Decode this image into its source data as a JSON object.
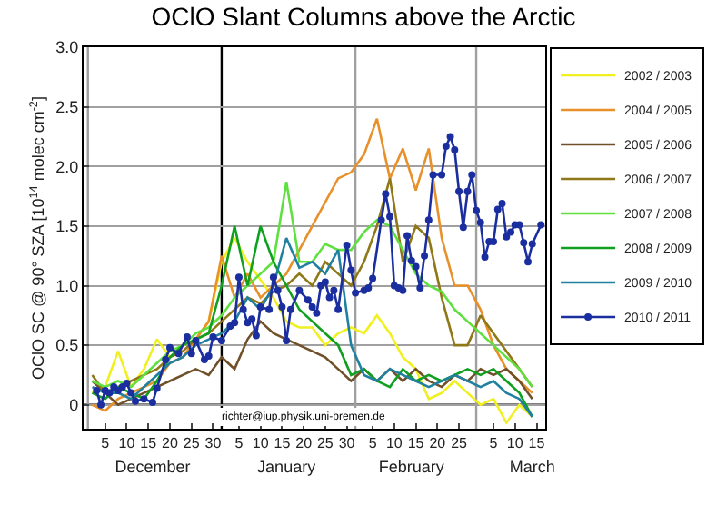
{
  "chart_data": {
    "type": "line",
    "title": "OClO Slant Columns above the Arctic",
    "ylabel": "OClO SC @ 90° SZA [10$^{14}$ molec cm$^{-2}$]",
    "x": [
      "2010-12-02",
      "2010-12-05",
      "2010-12-08",
      "2010-12-11",
      "2010-12-14",
      "2010-12-17",
      "2010-12-20",
      "2010-12-23",
      "2010-12-26",
      "2010-12-29",
      "2011-01-01",
      "2011-01-04",
      "2011-01-07",
      "2011-01-10",
      "2011-01-13",
      "2011-01-16",
      "2011-01-19",
      "2011-01-22",
      "2011-01-25",
      "2011-01-28",
      "2011-01-31",
      "2011-02-03",
      "2011-02-06",
      "2011-02-09",
      "2011-02-12",
      "2011-02-15",
      "2011-02-18",
      "2011-02-21",
      "2011-02-24",
      "2011-02-27",
      "2011-03-02",
      "2011-03-05",
      "2011-03-08",
      "2011-03-11",
      "2011-03-14"
    ],
    "xlim": [
      "2010-11-30",
      "2011-03-17"
    ],
    "ylim": [
      -0.2,
      3.0
    ],
    "xticks": [
      {
        "value": "2010-12-05",
        "label": "5"
      },
      {
        "value": "2010-12-10",
        "label": "10"
      },
      {
        "value": "2010-12-15",
        "label": "15"
      },
      {
        "value": "2010-12-20",
        "label": "20"
      },
      {
        "value": "2010-12-25",
        "label": "25"
      },
      {
        "value": "2010-12-30",
        "label": "30"
      },
      {
        "value": "2011-01-05",
        "label": "5"
      },
      {
        "value": "2011-01-10",
        "label": "10"
      },
      {
        "value": "2011-01-15",
        "label": "15"
      },
      {
        "value": "2011-01-20",
        "label": "20"
      },
      {
        "value": "2011-01-25",
        "label": "25"
      },
      {
        "value": "2011-01-30",
        "label": "30"
      },
      {
        "value": "2011-02-05",
        "label": "5"
      },
      {
        "value": "2011-02-10",
        "label": "10"
      },
      {
        "value": "2011-02-15",
        "label": "15"
      },
      {
        "value": "2011-02-20",
        "label": "20"
      },
      {
        "value": "2011-02-25",
        "label": "25"
      },
      {
        "value": "2011-03-05",
        "label": "5"
      },
      {
        "value": "2011-03-10",
        "label": "10"
      },
      {
        "value": "2011-03-15",
        "label": "15"
      }
    ],
    "x2lim": [
      "2010-11-30",
      "2011-03-17"
    ],
    "x2ticks": [
      {
        "value": "2010-12-16",
        "label": "December"
      },
      {
        "value": "2011-01-16",
        "label": "January"
      },
      {
        "value": "2011-02-14",
        "label": "February"
      },
      {
        "value": "2011-03-14",
        "label": "March"
      }
    ],
    "yticks": [
      {
        "value": 0,
        "label": "0"
      },
      {
        "value": 0.5,
        "label": "0.5"
      },
      {
        "value": 1.0,
        "label": "1.0"
      },
      {
        "value": 1.5,
        "label": "1.5"
      },
      {
        "value": 2.0,
        "label": "2.0"
      },
      {
        "value": 2.5,
        "label": "2.5"
      },
      {
        "value": 3.0,
        "label": "3.0"
      }
    ],
    "grid": "y",
    "legend": "right",
    "marker": "none",
    "line_style": "solid",
    "ref_lines": [
      {
        "axis": "y",
        "value": 0,
        "color": "#000000"
      },
      {
        "axis": "x",
        "value": "2010-12-01",
        "color": "#a0a0a0"
      },
      {
        "axis": "x",
        "value": "2011-01-01",
        "color": "#000000"
      },
      {
        "axis": "x",
        "value": "2011-02-01",
        "color": "#a0a0a0"
      },
      {
        "axis": "x",
        "value": "2011-03-01",
        "color": "#a0a0a0"
      }
    ],
    "annotations": [
      "richter@iup.physik.uni-bremen.de"
    ],
    "series": [
      {
        "name": "2002 / 2003",
        "color": "#f0f020",
        "values": [
          0.1,
          0.15,
          0.45,
          0.15,
          0.3,
          0.55,
          0.4,
          0.5,
          0.55,
          0.7,
          1.2,
          1.4,
          1.2,
          1.05,
          0.9,
          0.7,
          0.65,
          0.65,
          0.5,
          0.6,
          0.65,
          0.6,
          0.75,
          0.6,
          0.4,
          0.3,
          0.05,
          0.1,
          0.2,
          0.1,
          0.0,
          0.05,
          -0.15,
          0.0,
          -0.1
        ]
      },
      {
        "name": "2004 / 2005",
        "color": "#e8902a",
        "values": [
          0.0,
          -0.05,
          0.05,
          0.1,
          0.15,
          0.2,
          0.35,
          0.4,
          0.55,
          0.7,
          1.25,
          0.9,
          1.1,
          0.9,
          1.0,
          1.1,
          1.3,
          1.5,
          1.7,
          1.9,
          1.95,
          2.1,
          2.4,
          1.9,
          2.15,
          1.8,
          2.15,
          1.4,
          1.0,
          1.0,
          0.8,
          0.5,
          0.3,
          0.2,
          0.1
        ]
      },
      {
        "name": "2005 / 2006",
        "color": "#705028",
        "values": [
          0.2,
          0.1,
          0.0,
          0.05,
          0.1,
          0.15,
          0.2,
          0.25,
          0.3,
          0.25,
          0.4,
          0.3,
          0.55,
          0.7,
          0.6,
          0.55,
          0.5,
          0.45,
          0.4,
          0.3,
          0.2,
          0.3,
          0.2,
          0.3,
          0.2,
          0.3,
          0.2,
          0.15,
          0.25,
          0.2,
          0.3,
          0.25,
          0.3,
          0.2,
          0.05
        ]
      },
      {
        "name": "2006 / 2007",
        "color": "#907818",
        "values": [
          0.25,
          0.1,
          0.15,
          0.2,
          0.25,
          0.3,
          0.4,
          0.45,
          0.55,
          0.6,
          0.7,
          0.8,
          0.9,
          0.85,
          0.95,
          1.0,
          1.1,
          1.0,
          1.2,
          1.1,
          1.0,
          1.2,
          1.5,
          1.9,
          1.2,
          1.5,
          1.4,
          0.9,
          0.5,
          0.5,
          0.75,
          0.6,
          0.45,
          0.3,
          0.15
        ]
      },
      {
        "name": "2007 / 2008",
        "color": "#60e040",
        "values": [
          0.2,
          0.15,
          0.2,
          0.15,
          0.25,
          0.35,
          0.45,
          0.5,
          0.6,
          0.65,
          0.75,
          0.9,
          1.0,
          1.1,
          1.2,
          1.87,
          1.2,
          1.2,
          1.35,
          1.3,
          1.3,
          1.45,
          1.55,
          1.5,
          1.3,
          1.1,
          1.0,
          0.95,
          0.8,
          0.7,
          0.6,
          0.5,
          0.4,
          0.3,
          0.15
        ]
      },
      {
        "name": "2008 / 2009",
        "color": "#10a020",
        "values": [
          0.1,
          0.05,
          0.15,
          0.1,
          0.05,
          0.2,
          0.4,
          0.5,
          0.55,
          0.6,
          1.0,
          1.5,
          1.0,
          1.5,
          1.2,
          1.0,
          0.8,
          0.7,
          0.6,
          0.5,
          0.25,
          0.3,
          0.2,
          0.15,
          0.3,
          0.2,
          0.25,
          0.2,
          0.25,
          0.3,
          0.25,
          0.3,
          0.2,
          0.1,
          -0.1
        ]
      },
      {
        "name": "2009 / 2010",
        "color": "#2080a0",
        "values": [
          0.15,
          0.1,
          0.1,
          0.05,
          0.15,
          0.25,
          0.35,
          0.4,
          0.5,
          0.55,
          0.6,
          0.7,
          0.9,
          0.8,
          1.0,
          1.4,
          1.15,
          1.2,
          1.1,
          1.3,
          0.5,
          0.25,
          0.2,
          0.3,
          0.25,
          0.2,
          0.15,
          0.2,
          0.25,
          0.2,
          0.15,
          0.2,
          0.1,
          0.05,
          -0.1
        ]
      },
      {
        "name": "2010 / 2011",
        "color": "#1a2ea0",
        "marker": "circle",
        "x": [
          "2010-12-03",
          "2010-12-04",
          "2010-12-05",
          "2010-12-06",
          "2010-12-07",
          "2010-12-08",
          "2010-12-09",
          "2010-12-10",
          "2010-12-11",
          "2010-12-12",
          "2010-12-14",
          "2010-12-16",
          "2010-12-17",
          "2010-12-19",
          "2010-12-20",
          "2010-12-22",
          "2010-12-24",
          "2010-12-25",
          "2010-12-26",
          "2010-12-28",
          "2010-12-29",
          "2010-12-30",
          "2011-01-01",
          "2011-01-03",
          "2011-01-04",
          "2011-01-05",
          "2011-01-06",
          "2011-01-07",
          "2011-01-08",
          "2011-01-09",
          "2011-01-10",
          "2011-01-12",
          "2011-01-13",
          "2011-01-14",
          "2011-01-15",
          "2011-01-16",
          "2011-01-17",
          "2011-01-19",
          "2011-01-21",
          "2011-01-22",
          "2011-01-23",
          "2011-01-24",
          "2011-01-25",
          "2011-01-26",
          "2011-01-27",
          "2011-01-28",
          "2011-01-30",
          "2011-01-31",
          "2011-02-01",
          "2011-02-03",
          "2011-02-04",
          "2011-02-05",
          "2011-02-07",
          "2011-02-08",
          "2011-02-09",
          "2011-02-10",
          "2011-02-11",
          "2011-02-12",
          "2011-02-13",
          "2011-02-14",
          "2011-02-15",
          "2011-02-16",
          "2011-02-17",
          "2011-02-18",
          "2011-02-19",
          "2011-02-21",
          "2011-02-22",
          "2011-02-23",
          "2011-02-24",
          "2011-02-25",
          "2011-02-26",
          "2011-02-27",
          "2011-02-28",
          "2011-03-01",
          "2011-03-02",
          "2011-03-03",
          "2011-03-04",
          "2011-03-05",
          "2011-03-06",
          "2011-03-07",
          "2011-03-08",
          "2011-03-09",
          "2011-03-10",
          "2011-03-11",
          "2011-03-12",
          "2011-03-13",
          "2011-03-14",
          "2011-03-16"
        ],
        "values": [
          0.12,
          0.0,
          0.12,
          0.1,
          0.15,
          0.12,
          0.15,
          0.18,
          0.1,
          0.03,
          0.05,
          0.02,
          0.14,
          0.38,
          0.48,
          0.43,
          0.57,
          0.43,
          0.54,
          0.38,
          0.41,
          0.57,
          0.54,
          0.66,
          0.69,
          1.07,
          0.8,
          0.69,
          0.72,
          0.58,
          0.82,
          0.8,
          1.07,
          0.96,
          0.82,
          0.54,
          0.8,
          0.96,
          0.88,
          0.82,
          0.77,
          1.0,
          1.03,
          0.9,
          0.96,
          0.8,
          1.34,
          1.13,
          0.94,
          0.96,
          0.98,
          1.06,
          1.55,
          1.77,
          1.58,
          1.0,
          0.98,
          0.96,
          1.42,
          1.21,
          1.16,
          0.98,
          1.25,
          1.55,
          1.93,
          1.93,
          2.17,
          2.25,
          2.14,
          1.79,
          1.49,
          1.79,
          1.93,
          1.63,
          1.53,
          1.24,
          1.37,
          1.37,
          1.64,
          1.69,
          1.41,
          1.45,
          1.51,
          1.51,
          1.36,
          1.2,
          1.35,
          1.51
        ]
      }
    ]
  }
}
